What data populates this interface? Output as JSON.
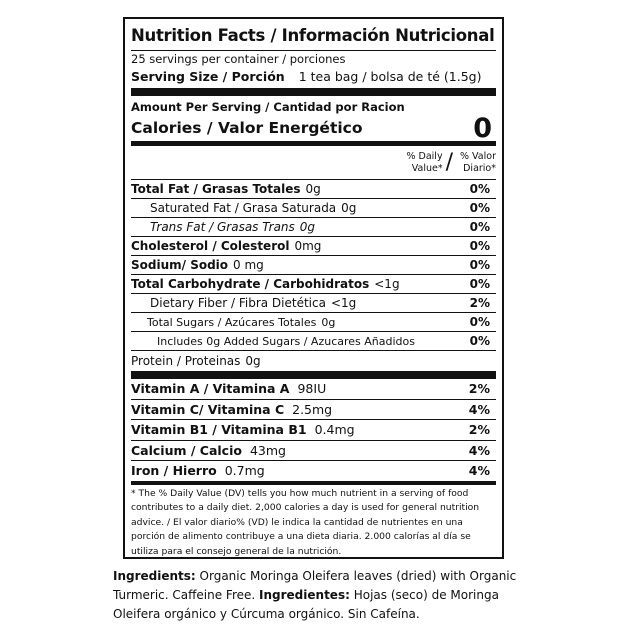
{
  "header": {
    "title": "Nutrition Facts / Información Nutricional",
    "servings": "25 servings per container / porciones",
    "serving_size_label": "Serving Size / Porción",
    "serving_size_value": "1 tea bag / bolsa de té (1.5g)"
  },
  "calories": {
    "amount_per_serving": "Amount Per Serving / Cantidad por Racion",
    "label": "Calories / Valor Energético",
    "value": 0
  },
  "dv_header": {
    "english": "% Daily Value*",
    "separator": "/",
    "spanish": "% Valor Diario*"
  },
  "nutrients": [
    {
      "name": "Total Fat / Grasas Totales",
      "amount": "0g",
      "dv": "0%"
    },
    {
      "name": "Saturated Fat / Grasa Saturada",
      "amount": "0g",
      "dv": "0%"
    },
    {
      "name": "Trans Fat / Grasas Trans",
      "amount": "0g",
      "dv": "0%"
    },
    {
      "name": "Cholesterol / Colesterol",
      "amount": "0mg",
      "dv": "0%"
    },
    {
      "name": "Sodium/ Sodio",
      "amount": "0 mg",
      "dv": "0%"
    },
    {
      "name": "Total Carbohydrate / Carbohidratos",
      "amount": "<1g",
      "dv": "0%"
    },
    {
      "name": "Dietary Fiber / Fibra Dietética",
      "amount": "<1g",
      "dv": "2%"
    },
    {
      "name": "Total Sugars / Azúcares Totales",
      "amount": "0g",
      "dv": "0%"
    },
    {
      "name": "Includes 0g Added Sugars / Azucares Añadidos",
      "dv": "0%"
    },
    {
      "name": "Protein / Proteinas",
      "amount": "0g"
    }
  ],
  "vitamins": [
    {
      "name": "Vitamin A / Vitamina A",
      "amount": "98IU",
      "dv": "2%"
    },
    {
      "name": "Vitamin C/ Vitamina C",
      "amount": "2.5mg",
      "dv": "4%"
    },
    {
      "name": "Vitamin B1 / Vitamina B1",
      "amount": "0.4mg",
      "dv": "2%"
    },
    {
      "name": "Calcium / Calcio",
      "amount": "43mg",
      "dv": "4%"
    },
    {
      "name": "Iron / Hierro",
      "amount": "0.7mg",
      "dv": "4%"
    }
  ],
  "footnote": "* The % Daily Value (DV) tells you how much nutrient in a serving of food contributes to a daily diet. 2,000 calories a day is used for general nutrition advice. / El valor diario% (VD) le indica la cantidad de nutrientes en una porción de alimento contribuye a una dieta diaria. 2.000 calorías al día se utiliza para el consejo general de la nutrición.",
  "ingredients": {
    "label_en": "Ingredients:",
    "text_en": "Organic Moringa Oleifera leaves (dried) with Organic Turmeric. Caffeine Free.",
    "label_es": "Ingredientes:",
    "text_es": "Hojas (seco) de Moringa Oleifera orgánico y Cúrcuma orgánico. Sin Cafeína."
  }
}
